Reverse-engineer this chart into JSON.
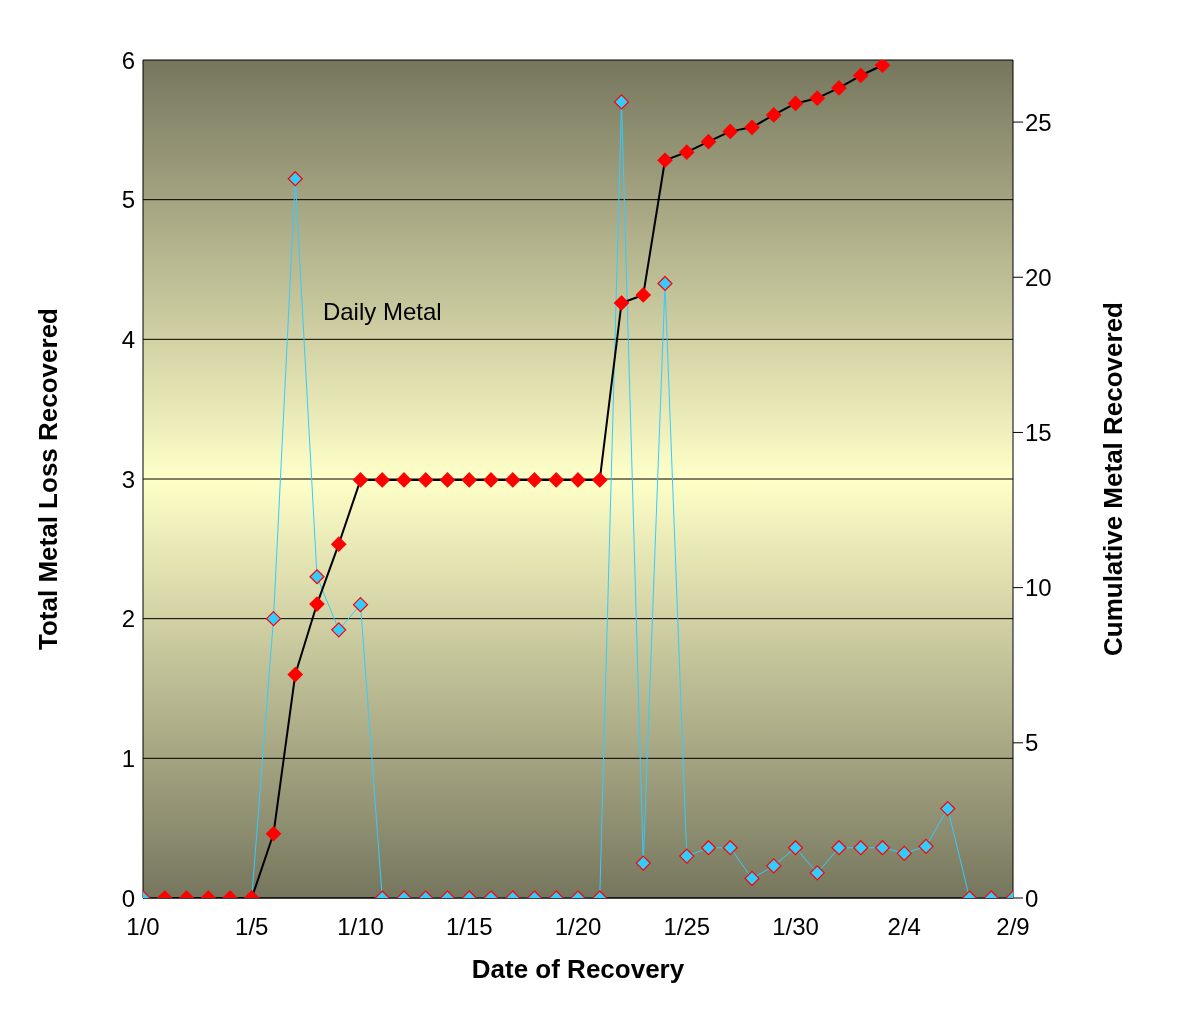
{
  "chart_data": {
    "type": "line",
    "xlabel": "Date of Recovery",
    "ylabel": "Total Metal Loss Recovered",
    "y2label": "Cumulative Metal Recovered",
    "categories": [
      "1/0",
      null,
      null,
      null,
      null,
      "1/5",
      null,
      null,
      null,
      null,
      "1/10",
      null,
      null,
      null,
      null,
      "1/15",
      null,
      null,
      null,
      null,
      "1/20",
      null,
      null,
      null,
      null,
      "1/25",
      null,
      null,
      null,
      null,
      "1/30",
      null,
      null,
      null,
      null,
      "2/4",
      null,
      null,
      null,
      null,
      "2/9"
    ],
    "series": [
      {
        "name": "Daily Metal",
        "color": "#33ccff",
        "values": [
          0,
          null,
          null,
          null,
          null,
          0,
          2.0,
          5.15,
          2.3,
          1.92,
          2.1,
          0,
          0,
          0,
          0,
          0,
          0,
          0,
          0,
          0,
          0,
          0,
          5.7,
          0.25,
          4.4,
          0.3,
          0.36,
          0.36,
          0.14,
          0.23,
          0.36,
          0.18,
          0.36,
          0.36,
          0.36,
          0.32,
          0.37,
          0.64,
          0,
          0,
          0
        ]
      },
      {
        "color": "#ff0000",
        "axis": "y2",
        "values": [
          null,
          0,
          0,
          0,
          0,
          0,
          2.07,
          7.2,
          9.47,
          11.4,
          13.47,
          13.47,
          13.47,
          13.47,
          13.47,
          13.47,
          13.47,
          13.47,
          13.47,
          13.47,
          13.47,
          13.47,
          19.17,
          19.43,
          23.77,
          24.03,
          24.37,
          24.7,
          24.83,
          25.23,
          25.6,
          25.77,
          26.1,
          26.5,
          26.83,
          null,
          null,
          null,
          null,
          null,
          null
        ]
      }
    ],
    "ylim": [
      0,
      6
    ],
    "yticks": [
      0,
      1,
      2,
      3,
      4,
      5,
      6
    ],
    "y2lim": [
      0,
      27
    ],
    "y2ticks": [
      0,
      5,
      10,
      15,
      20,
      25
    ],
    "grid": "y",
    "legend": false,
    "marker": "diamond",
    "line_style": "solid"
  }
}
